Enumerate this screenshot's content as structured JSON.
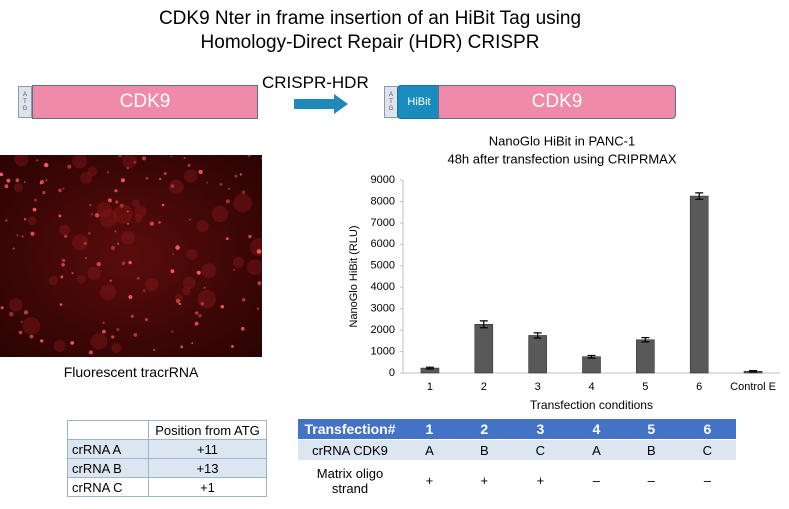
{
  "title": [
    "CDK9 Nter in frame insertion of an HiBit Tag using",
    "Homology-Direct  Repair  (HDR)  CRISPR"
  ],
  "diagram": {
    "atg": "ATG",
    "gene": "CDK9",
    "arrow_label": "CRISPR-HDR",
    "tag": "HiBit"
  },
  "image_caption": "Fluorescent tracrRNA",
  "chart_data": {
    "type": "bar",
    "title": [
      "NanoGlo HiBit in PANC-1",
      "48h after transfection using CRIPRMAX"
    ],
    "x_label": "Transfection conditions",
    "y_label": "NanoGlo HiBit (RLU)",
    "categories": [
      "1",
      "2",
      "3",
      "4",
      "5",
      "6",
      "Control E"
    ],
    "values": [
      230,
      2270,
      1750,
      760,
      1550,
      8250,
      80
    ],
    "errors": [
      40,
      160,
      120,
      60,
      100,
      150,
      30
    ],
    "color": "#595959",
    "ylim": [
      0,
      9000
    ],
    "yticks": [
      0,
      1000,
      2000,
      3000,
      4000,
      5000,
      6000,
      7000,
      8000,
      9000
    ],
    "grid": false
  },
  "crrna_table": {
    "column_header": "Position from ATG",
    "rows": [
      [
        "crRNA A",
        "+11"
      ],
      [
        "crRNA B",
        "+13"
      ],
      [
        "crRNA C",
        "+1"
      ]
    ]
  },
  "transfection_table": {
    "header": [
      "Transfection#",
      "1",
      "2",
      "3",
      "4",
      "5",
      "6"
    ],
    "rows": [
      [
        "crRNA CDK9",
        "A",
        "B",
        "C",
        "A",
        "B",
        "C"
      ],
      [
        "Matrix oligo strand",
        "+",
        "+",
        "+",
        "–",
        "–",
        "–"
      ]
    ]
  }
}
